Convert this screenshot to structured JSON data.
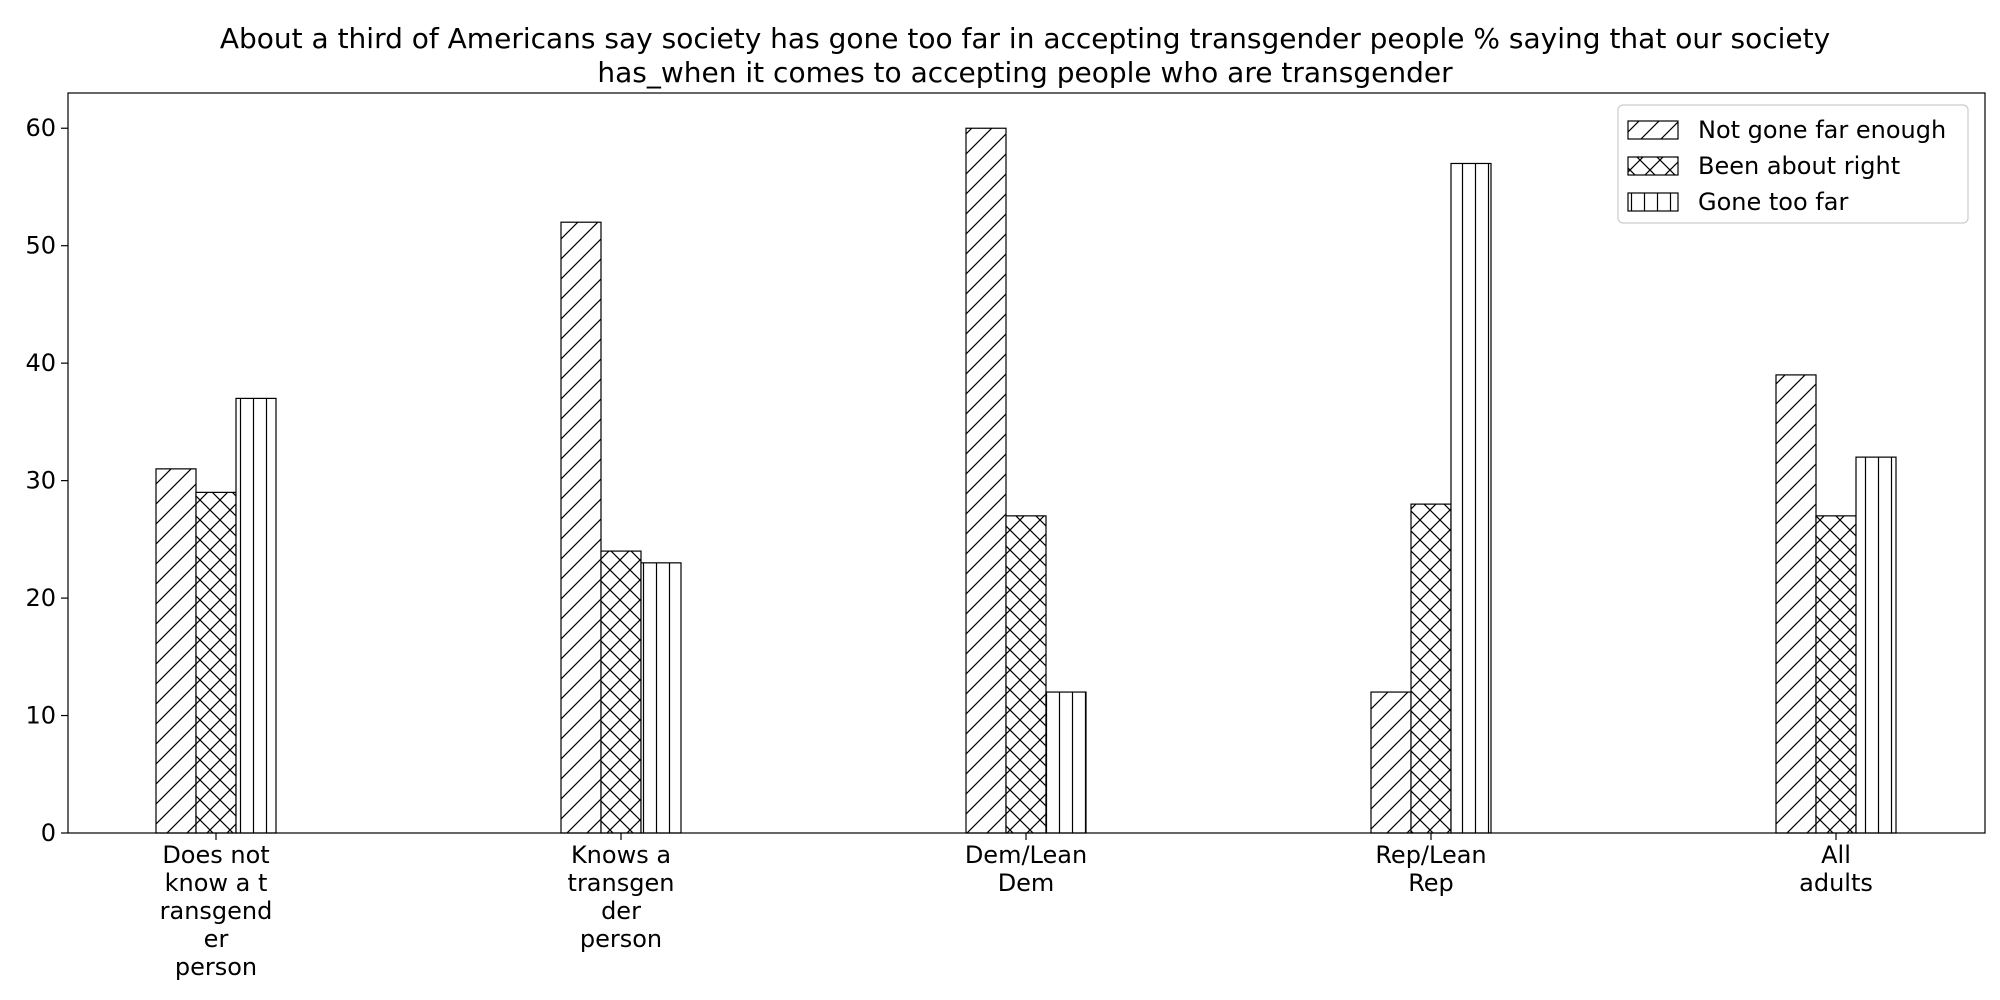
{
  "chart_data": {
    "type": "bar",
    "title_lines": [
      "About a third of Americans say society has gone too far in accepting transgender people % saying that our society",
      "has_when it comes to accepting people who are transgender"
    ],
    "xlabel": "",
    "ylabel": "",
    "categories": [
      [
        "Does not",
        "know a t",
        "ransgend",
        "er",
        "person"
      ],
      [
        "Knows a",
        "transgen",
        "der",
        "person"
      ],
      [
        "Dem/Lean",
        "Dem"
      ],
      [
        "Rep/Lean",
        "Rep"
      ],
      [
        "All",
        "adults"
      ]
    ],
    "series": [
      {
        "name": "Not gone far enough",
        "hatch": "diagonal",
        "values": [
          31,
          52,
          60,
          12,
          39
        ]
      },
      {
        "name": "Been about right",
        "hatch": "cross",
        "values": [
          29,
          24,
          27,
          28,
          27
        ]
      },
      {
        "name": "Gone too far",
        "hatch": "vertical",
        "values": [
          37,
          23,
          12,
          57,
          32
        ]
      }
    ],
    "ylim": [
      0,
      63
    ],
    "yticks": [
      0,
      10,
      20,
      30,
      40,
      50,
      60
    ],
    "grid": false,
    "legend_position": "top-right",
    "colors": {
      "bar_fill": "#ffffff",
      "bar_edge": "#000000",
      "axes": "#000000"
    }
  }
}
